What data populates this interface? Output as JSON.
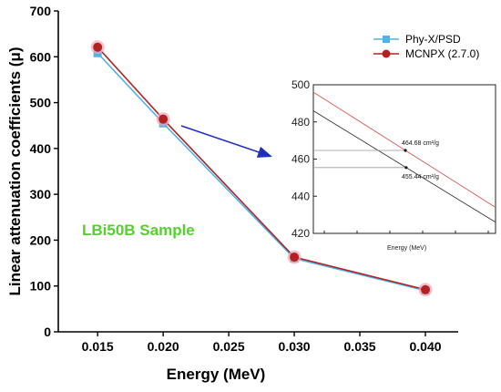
{
  "colors": {
    "phyx": "#4fb3e8",
    "mcnpx": "#b22222",
    "mcnpx_glow": "#f2a6b8",
    "inset_upper_line": "#d9534f",
    "inset_lower_line": "#333333",
    "arrow": "#1f2fbf",
    "sample_label": "#55d12f",
    "gridline_inset": "#999999"
  },
  "chart_data": [
    {
      "type": "line",
      "x": [
        0.015,
        0.02,
        0.03,
        0.04
      ],
      "series": [
        {
          "name": "Phy-X/PSD",
          "values": [
            608,
            455,
            160,
            90
          ],
          "marker": "square"
        },
        {
          "name": "MCNPX (2.7.0)",
          "values": [
            621,
            464,
            163,
            92
          ],
          "marker": "circle"
        }
      ],
      "xlabel": "Energy (MeV)",
      "ylabel": "Linear attenuation coefficients (μ)",
      "xlim": [
        0.012,
        0.0425
      ],
      "ylim": [
        0,
        700
      ],
      "x_ticks": [
        "0.015",
        "0.020",
        "0.025",
        "0.030",
        "0.035",
        "0.040"
      ],
      "y_ticks": [
        "0",
        "100",
        "200",
        "300",
        "400",
        "500",
        "600",
        "700"
      ],
      "legend_position": "top-right",
      "annotation": "LBi50B Sample"
    },
    {
      "type": "line",
      "inset": true,
      "xlabel": "Energy (MeV)",
      "ylim": [
        420,
        500
      ],
      "y_ticks": [
        "420",
        "440",
        "460",
        "480",
        "500"
      ],
      "series": [
        {
          "name": "MCNPX (2.7.0)",
          "y_left": 496,
          "y_right": 434
        },
        {
          "name": "Phy-X/PSD",
          "y_left": 486,
          "y_right": 426
        }
      ],
      "annotations": [
        {
          "text": "464.68 cm²/g",
          "value": 464.68
        },
        {
          "text": "455.44 cm²/g",
          "value": 455.44
        }
      ]
    }
  ]
}
